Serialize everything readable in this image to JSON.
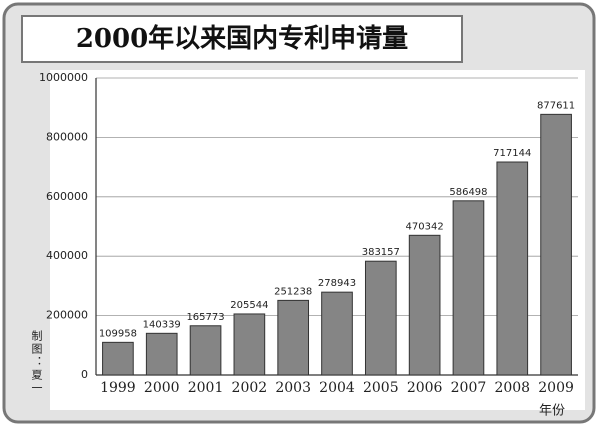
{
  "chart_data": {
    "type": "bar",
    "title": "2000年以来国内专利申请量",
    "x_label": "年份",
    "credit": "制图：夏一",
    "categories": [
      "1999",
      "2000",
      "2001",
      "2002",
      "2003",
      "2004",
      "2005",
      "2006",
      "2007",
      "2008",
      "2009"
    ],
    "values": [
      109958,
      140339,
      165773,
      205544,
      251238,
      278943,
      383157,
      470342,
      586498,
      717144,
      877611
    ],
    "color": "#858585",
    "ylim": [
      0,
      1000000
    ],
    "yticks": [
      0,
      200000,
      400000,
      600000,
      800000,
      1000000
    ],
    "grid": true
  }
}
